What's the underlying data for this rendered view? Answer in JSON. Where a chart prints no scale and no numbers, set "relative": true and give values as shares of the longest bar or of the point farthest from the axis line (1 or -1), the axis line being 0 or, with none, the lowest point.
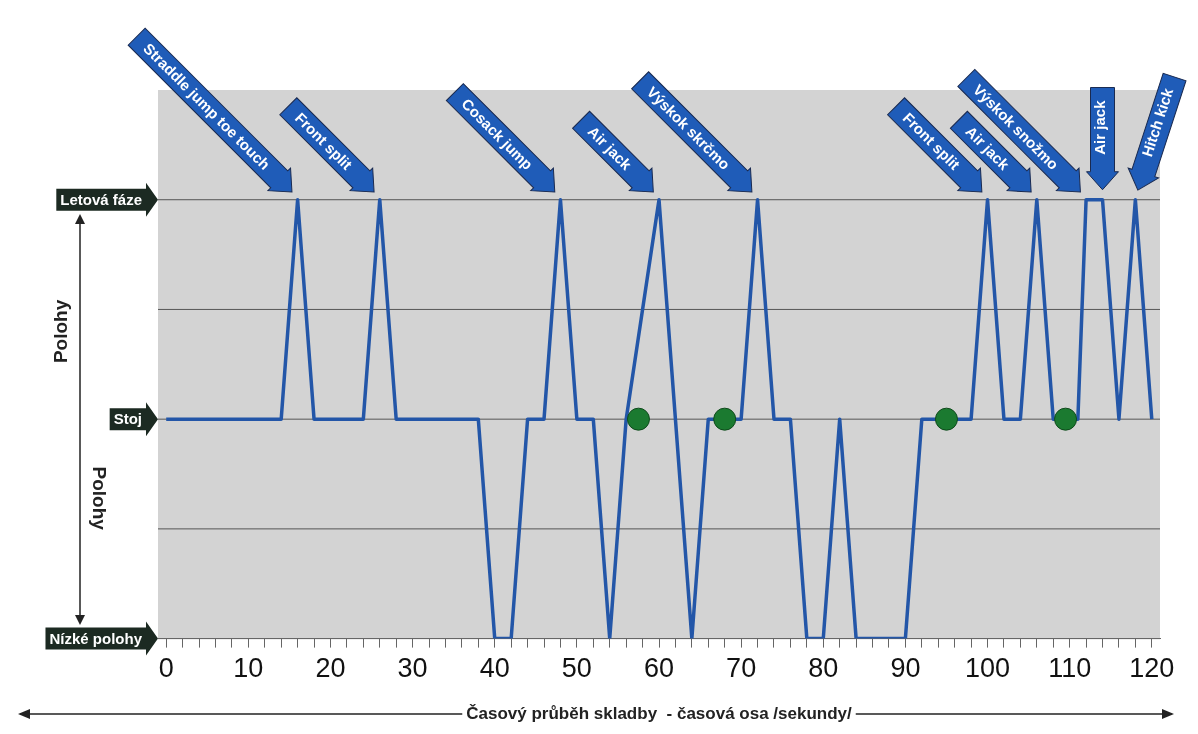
{
  "chart_data": {
    "type": "line",
    "xlabel": "Časový průběh skladby  - časová osa /sekundy/",
    "relative": true,
    "xlim": [
      -1,
      121
    ],
    "xticks": [
      0,
      {
        "value": 2,
        "label": null
      },
      {
        "value": 4,
        "label": null
      },
      {
        "value": 6,
        "label": null
      },
      {
        "value": 8,
        "label": null
      },
      10,
      {
        "value": 12,
        "label": null
      },
      {
        "value": 14,
        "label": null
      },
      {
        "value": 16,
        "label": null
      },
      {
        "value": 18,
        "label": null
      },
      20,
      {
        "value": 22,
        "label": null
      },
      {
        "value": 24,
        "label": null
      },
      {
        "value": 26,
        "label": null
      },
      {
        "value": 28,
        "label": null
      },
      30,
      {
        "value": 32,
        "label": null
      },
      {
        "value": 34,
        "label": null
      },
      {
        "value": 36,
        "label": null
      },
      {
        "value": 38,
        "label": null
      },
      40,
      {
        "value": 42,
        "label": null
      },
      {
        "value": 44,
        "label": null
      },
      {
        "value": 46,
        "label": null
      },
      {
        "value": 48,
        "label": null
      },
      50,
      {
        "value": 52,
        "label": null
      },
      {
        "value": 54,
        "label": null
      },
      {
        "value": 56,
        "label": null
      },
      {
        "value": 58,
        "label": null
      },
      60,
      {
        "value": 62,
        "label": null
      },
      {
        "value": 64,
        "label": null
      },
      {
        "value": 66,
        "label": null
      },
      {
        "value": 68,
        "label": null
      },
      70,
      {
        "value": 72,
        "label": null
      },
      {
        "value": 74,
        "label": null
      },
      {
        "value": 76,
        "label": null
      },
      {
        "value": 78,
        "label": null
      },
      80,
      {
        "value": 82,
        "label": null
      },
      {
        "value": 84,
        "label": null
      },
      {
        "value": 86,
        "label": null
      },
      {
        "value": 88,
        "label": null
      },
      90,
      {
        "value": 92,
        "label": null
      },
      {
        "value": 94,
        "label": null
      },
      {
        "value": 96,
        "label": null
      },
      {
        "value": 98,
        "label": null
      },
      100,
      {
        "value": 102,
        "label": null
      },
      {
        "value": 104,
        "label": null
      },
      {
        "value": 106,
        "label": null
      },
      {
        "value": 108,
        "label": null
      },
      110,
      {
        "value": 112,
        "label": null
      },
      {
        "value": 114,
        "label": null
      },
      {
        "value": 116,
        "label": null
      },
      {
        "value": 118,
        "label": null
      },
      120
    ],
    "ref_lines": [
      {
        "axis": "y",
        "value": 1,
        "label": "Letová fáze"
      },
      {
        "axis": "y",
        "value": 0.5
      },
      {
        "axis": "y",
        "value": 0,
        "label": "Stoj"
      },
      {
        "axis": "y",
        "value": -0.5
      },
      {
        "axis": "y",
        "value": -1,
        "label": "Nízké polohy"
      }
    ],
    "series": [
      {
        "color": "#2356a8",
        "x": [
          0,
          14,
          16,
          18,
          24,
          26,
          28,
          38,
          40,
          42,
          44,
          46,
          48,
          50,
          52,
          54,
          56,
          60,
          64,
          66,
          70,
          72,
          74,
          76,
          78,
          80,
          82,
          84,
          90,
          92,
          98,
          100,
          102,
          104,
          106,
          108,
          111,
          112,
          114,
          116,
          118,
          120
        ],
        "values": [
          0,
          0,
          1,
          0,
          0,
          1,
          0,
          0,
          -1,
          -1,
          0,
          0,
          1,
          0,
          0,
          -1,
          0,
          1,
          -1,
          0,
          0,
          1,
          0,
          0,
          -1,
          -1,
          0,
          -1,
          -1,
          0,
          0,
          1,
          0,
          0,
          1,
          0,
          0,
          1,
          1,
          0,
          1,
          0
        ]
      },
      {
        "type": "scatter",
        "marker": "circle",
        "color": "#1b7a30",
        "x": [
          57.5,
          68,
          95,
          109.5
        ],
        "values": [
          0,
          0,
          0,
          0
        ]
      }
    ],
    "annotations": [
      "Polohy",
      "Polohy",
      {
        "text": "Straddle jump toe touch",
        "x": 16,
        "y": 1
      },
      {
        "text": "Front split",
        "x": 26,
        "y": 1
      },
      {
        "text": "Cosack jump",
        "x": 48,
        "y": 1
      },
      {
        "text": "Air jack",
        "x": 60,
        "y": 1
      },
      {
        "text": "Výskok skrčmo",
        "x": 72,
        "y": 1
      },
      {
        "text": "Front split",
        "x": 100,
        "y": 1
      },
      {
        "text": "Air jack",
        "x": 106,
        "y": 1
      },
      {
        "text": "Výskok snožmo",
        "x": 112,
        "y": 1
      },
      {
        "text": "Air jack",
        "x": 114,
        "y": 1
      },
      {
        "text": "Hitch kick",
        "x": 118,
        "y": 1
      }
    ]
  }
}
